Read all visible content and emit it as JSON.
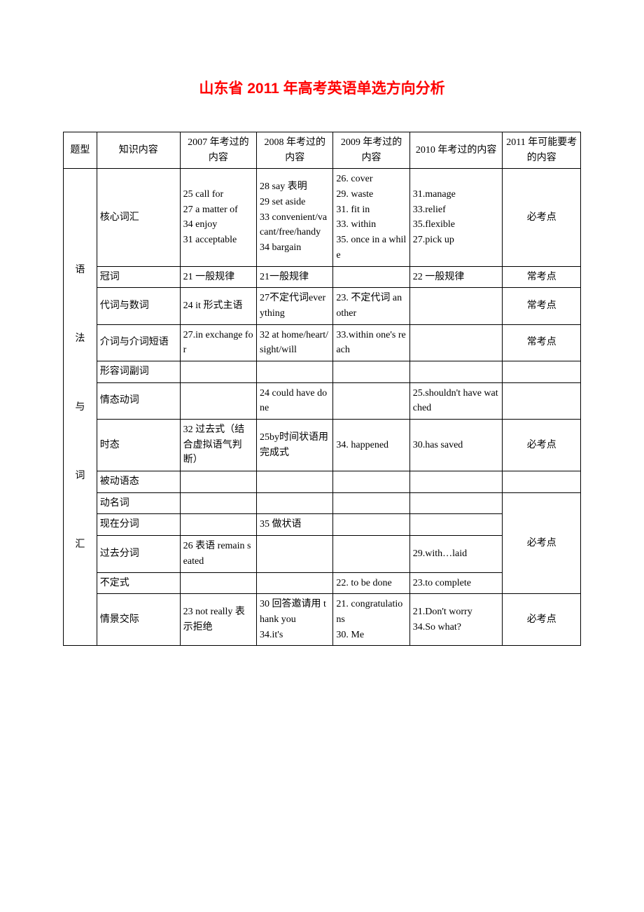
{
  "title": "山东省 2011 年高考英语单选方向分析",
  "header": {
    "col0": "题型",
    "col1": "知识内容",
    "col2": "2007 年考过的内容",
    "col3": "2008 年考过的内容",
    "col4": "2009 年考过的内容",
    "col5": "2010 年考过的内容",
    "col6": "2011 年可能要考的内容"
  },
  "category": "语\n\n法\n\n与\n\n词\n\n汇",
  "rows": [
    {
      "topic": "核心词汇",
      "y2007": "25 call for\n27 a matter of\n34 enjoy\n31 acceptable",
      "y2008": "28 say 表明\n29 set aside\n33 convenient/vacant/free/handy\n34 bargain",
      "y2009": "26. cover\n29. waste\n31. fit in\n33. within\n35. once in a while",
      "y2010": "31.manage\n33.relief\n35.flexible\n27.pick up",
      "y2011": "必考点"
    },
    {
      "topic": "冠词",
      "y2007": "21 一般规律",
      "y2008": "21一般规律",
      "y2009": "",
      "y2010": "22 一般规律",
      "y2011": "常考点"
    },
    {
      "topic": "代词与数词",
      "y2007": "24 it 形式主语",
      "y2008": "27不定代词everything",
      "y2009": "23. 不定代词 another",
      "y2010": "",
      "y2011": "常考点"
    },
    {
      "topic": "介词与介词短语",
      "y2007": "27.in exchange for",
      "y2008": "32 at home/heart/sight/will",
      "y2009": "33.within one's reach",
      "y2010": "",
      "y2011": "常考点"
    },
    {
      "topic": "形容词副词",
      "y2007": "",
      "y2008": "",
      "y2009": "",
      "y2010": "",
      "y2011": ""
    },
    {
      "topic": "情态动词",
      "y2007": "",
      "y2008": "24  could have done",
      "y2009": "",
      "y2010": "25.shouldn't have watched",
      "y2011": ""
    },
    {
      "topic": "时态",
      "y2007": "32 过去式（结合虚拟语气判断）",
      "y2008": "25by时间状语用完成式",
      "y2009": "34. happened",
      "y2010": "30.has saved",
      "y2011": "必考点"
    },
    {
      "topic": "被动语态",
      "y2007": "",
      "y2008": "",
      "y2009": "",
      "y2010": "",
      "y2011": ""
    },
    {
      "topic": "动名词",
      "y2007": "",
      "y2008": "",
      "y2009": "",
      "y2010": ""
    },
    {
      "topic": "现在分词",
      "y2007": "",
      "y2008": "35 做状语",
      "y2009": "",
      "y2010": ""
    },
    {
      "topic": "过去分词",
      "y2007": "26 表语 remain seated",
      "y2008": "",
      "y2009": "",
      "y2010": "29.with…laid"
    },
    {
      "topic": "不定式",
      "y2007": "",
      "y2008": "",
      "y2009": "22. to be done",
      "y2010": "23.to complete"
    },
    {
      "topic": "情景交际",
      "y2007": "23 not really 表示拒绝",
      "y2008": "30 回答邀请用 thank you\n34.it's",
      "y2009": "21. congratulations\n30. Me",
      "y2010": "21.Don't worry\n34.So what?",
      "y2011": "必考点"
    }
  ],
  "merged_y2011_nonfinite": "必考点"
}
